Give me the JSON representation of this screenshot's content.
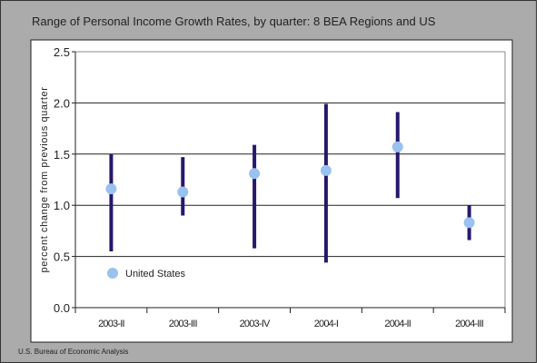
{
  "chart_data": {
    "type": "range",
    "title": "Range of Personal Income Growth Rates, by quarter: 8 BEA Regions and US",
    "xlabel": "",
    "ylabel": "percent change from previous quarter",
    "ylim": [
      0,
      2.5
    ],
    "yticks": [
      "0.0",
      "0.5",
      "1.0",
      "1.5",
      "2.0",
      "2.5"
    ],
    "grid": true,
    "categories": [
      "2003-II",
      "2003-III",
      "2003-IV",
      "2004-I",
      "2004-II",
      "2004-III"
    ],
    "range_high": [
      1.5,
      1.47,
      1.59,
      1.99,
      1.91,
      1.0
    ],
    "range_low": [
      0.55,
      0.9,
      0.58,
      0.44,
      1.07,
      0.66
    ],
    "series": [
      {
        "name": "United States",
        "values": [
          1.16,
          1.13,
          1.31,
          1.34,
          1.57,
          0.83
        ]
      }
    ],
    "legend_position": "inside-bottom-left",
    "colors": {
      "range": "#26196b",
      "us": "#99c2ee",
      "background": "#ababab"
    }
  },
  "source": "U.S. Bureau of Economic Analysis"
}
